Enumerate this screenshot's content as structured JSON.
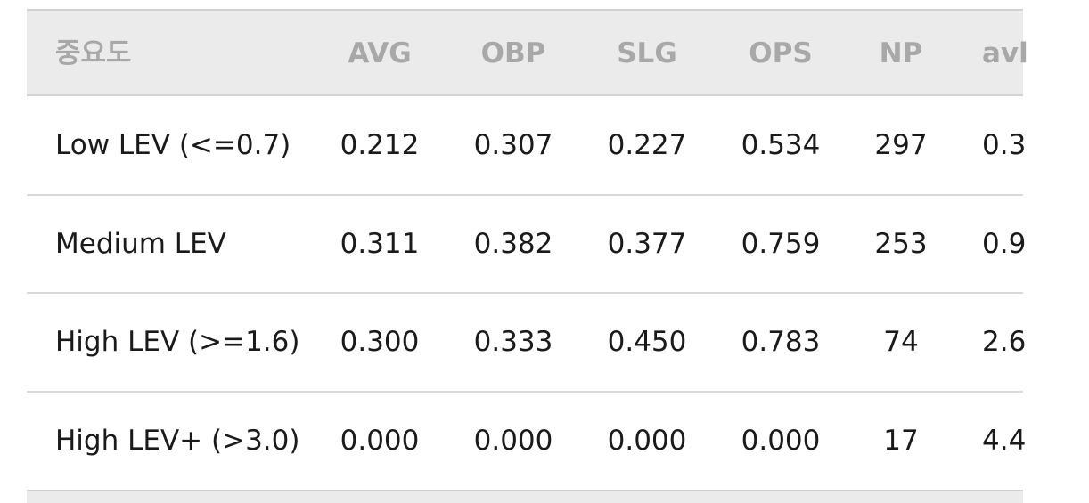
{
  "table": {
    "header": [
      "중요도",
      "AVG",
      "OBP",
      "SLG",
      "OPS",
      "NP",
      "avl"
    ],
    "rows": [
      [
        "Low LEV (<=0.7)",
        "0.212",
        "0.307",
        "0.227",
        "0.534",
        "297",
        "0.3"
      ],
      [
        "Medium LEV",
        "0.311",
        "0.382",
        "0.377",
        "0.759",
        "253",
        "0.9"
      ],
      [
        "High LEV (>=1.6)",
        "0.300",
        "0.333",
        "0.450",
        "0.783",
        "74",
        "2.6"
      ],
      [
        "High LEV+ (>3.0)",
        "0.000",
        "0.000",
        "0.000",
        "0.000",
        "17",
        "4.4"
      ]
    ]
  }
}
